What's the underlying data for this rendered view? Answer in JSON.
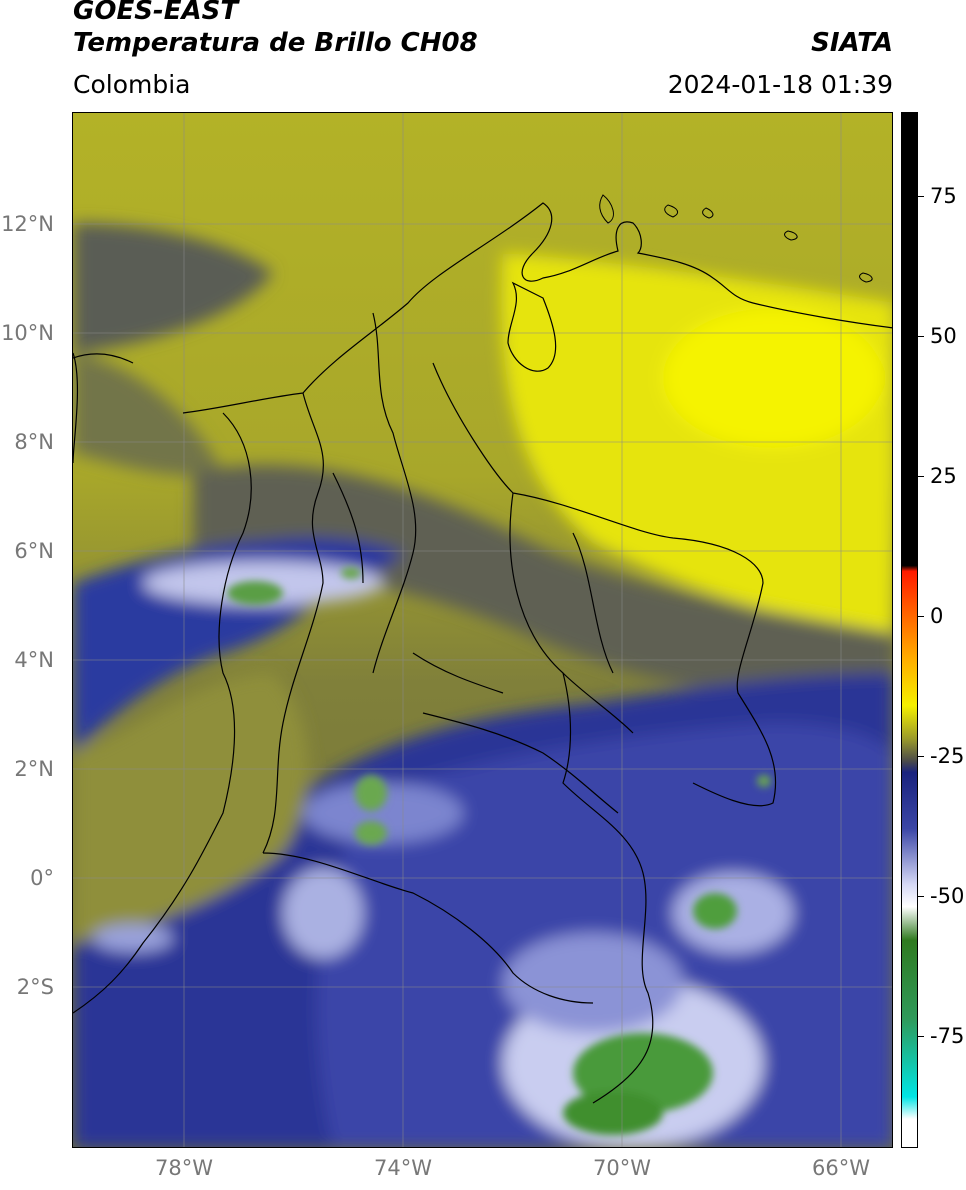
{
  "header": {
    "title_line1": "GOES-EAST",
    "title_line2": "Temperatura de Brillo CH08",
    "agency": "SIATA",
    "region": "Colombia",
    "datetime": "2024-01-18 01:39"
  },
  "map": {
    "lat_labels": [
      "12°N",
      "10°N",
      "8°N",
      "6°N",
      "4°N",
      "2°N",
      "0°",
      "2°S"
    ],
    "lon_labels": [
      "78°W",
      "74°W",
      "70°W",
      "66°W"
    ],
    "palette": {
      "yellow_bright": "#f2f000",
      "olive": "#9a9a2a",
      "gray_dark": "#55584f",
      "navy": "#1f2b8c",
      "blue": "#3a47a8",
      "lavender": "#b9bde6",
      "green": "#3f8f2f"
    }
  },
  "colorbar": {
    "labels": [
      "75",
      "50",
      "25",
      "0",
      "-25",
      "-50",
      "-75"
    ],
    "values": [
      75,
      50,
      25,
      0,
      -25,
      -50,
      -75
    ],
    "range": [
      -95,
      90
    ]
  }
}
